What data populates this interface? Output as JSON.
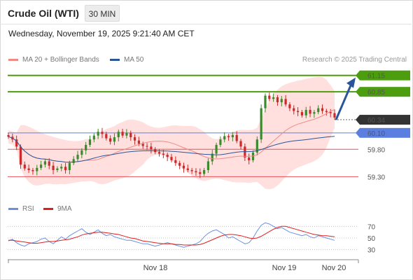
{
  "header": {
    "title": "Crude Oil (WTI)",
    "timeframe": "30 MIN",
    "datetime": "Wednesday, November 19, 2025 9:21:40 AM CET"
  },
  "legend": {
    "ma20_label": "MA 20 + Bollinger Bands",
    "ma50_label": "MA 50",
    "credit": "Research © 2025 Trading Central"
  },
  "colors": {
    "ma20": "#f08a86",
    "bands": "#ffd5d3",
    "ma50": "#2a5699",
    "up_candle": "#3b8b2e",
    "down_candle": "#cc2a2a",
    "resistance": "#4c9e0f",
    "pivot": "#5b7fe0",
    "support": "#e8525a",
    "current": "#333333",
    "arrow": "#2a5699",
    "rsi": "#6a8fe0",
    "rsi_ma": "#dd1f1f"
  },
  "chart_data": [
    {
      "type": "candlestick",
      "title": "Crude Oil (WTI)",
      "timeframe": "30 MIN",
      "x_labels": [
        "Nov 18",
        "Nov 19",
        "Nov 20"
      ],
      "ylim": [
        59.1,
        61.3
      ],
      "series": [
        {
          "name": "MA 20 + Bollinger Bands",
          "kind": "ma20"
        },
        {
          "name": "MA 50",
          "kind": "ma50"
        }
      ],
      "closes": [
        60.03,
        59.98,
        59.85,
        59.52,
        59.45,
        59.42,
        59.4,
        59.46,
        59.52,
        59.58,
        59.5,
        59.42,
        59.45,
        59.48,
        59.42,
        59.55,
        59.62,
        59.7,
        59.78,
        59.88,
        59.98,
        60.05,
        60.12,
        60.08,
        60.0,
        59.94,
        60.02,
        60.12,
        60.05,
        60.1,
        60.02,
        59.96,
        59.9,
        59.86,
        59.85,
        59.8,
        59.75,
        59.72,
        59.7,
        59.66,
        59.6,
        59.55,
        59.5,
        59.45,
        59.42,
        59.4,
        59.38,
        59.35,
        59.42,
        59.58,
        59.72,
        59.88,
        59.98,
        60.04,
        60.02,
        60.06,
        59.95,
        59.85,
        59.65,
        59.6,
        59.74,
        59.98,
        60.55,
        60.78,
        60.72,
        60.75,
        60.66,
        60.72,
        60.62,
        60.55,
        60.5,
        60.48,
        60.42,
        60.52,
        60.45,
        60.48,
        60.55,
        60.5,
        60.48,
        60.46,
        60.38
      ],
      "current": 60.34,
      "levels": [
        {
          "label": "61.15",
          "value": 61.15,
          "kind": "resistance"
        },
        {
          "label": "60.85",
          "value": 60.85,
          "kind": "resistance"
        },
        {
          "label": "60.34",
          "value": 60.34,
          "kind": "current"
        },
        {
          "label": "60.10",
          "value": 60.1,
          "kind": "pivot"
        },
        {
          "label": "59.80",
          "value": 59.8,
          "kind": "support"
        },
        {
          "label": "59.30",
          "value": 59.3,
          "kind": "support"
        }
      ],
      "projection": {
        "from": 60.34,
        "to": 61.15
      }
    },
    {
      "type": "line",
      "series": [
        {
          "name": "RSI",
          "values": [
            45,
            48,
            42,
            38,
            36,
            40,
            42,
            44,
            48,
            50,
            44,
            40,
            46,
            52,
            48,
            54,
            58,
            62,
            66,
            60,
            56,
            60,
            64,
            58,
            54,
            56,
            52,
            50,
            48,
            46,
            46,
            44,
            42,
            40,
            40,
            38,
            36,
            38,
            40,
            42,
            40,
            38,
            36,
            34,
            36,
            38,
            40,
            44,
            52,
            58,
            62,
            64,
            60,
            56,
            50,
            52,
            48,
            44,
            40,
            42,
            50,
            62,
            72,
            76,
            74,
            70,
            66,
            68,
            64,
            60,
            58,
            56,
            54,
            56,
            52,
            50,
            54,
            52,
            50,
            48,
            46
          ]
        },
        {
          "name": "9MA",
          "values": [
            46,
            46,
            45,
            44,
            43,
            42,
            41,
            41,
            42,
            43,
            44,
            44,
            45,
            46,
            47,
            48,
            50,
            52,
            55,
            57,
            58,
            59,
            60,
            60,
            59,
            58,
            57,
            56,
            54,
            52,
            50,
            49,
            47,
            45,
            44,
            43,
            42,
            41,
            40,
            40,
            40,
            39,
            39,
            38,
            38,
            38,
            38,
            39,
            41,
            44,
            47,
            50,
            53,
            55,
            56,
            56,
            55,
            54,
            52,
            50,
            49,
            50,
            53,
            57,
            61,
            65,
            68,
            70,
            70,
            68,
            66,
            64,
            62,
            60,
            58,
            56,
            55,
            54,
            54,
            53,
            52
          ]
        }
      ],
      "ylim": [
        20,
        80
      ],
      "y_ticks": [
        "70",
        "50",
        "30"
      ]
    }
  ],
  "rsi_legend": {
    "rsi_label": "RSI",
    "ma_label": "9MA"
  }
}
